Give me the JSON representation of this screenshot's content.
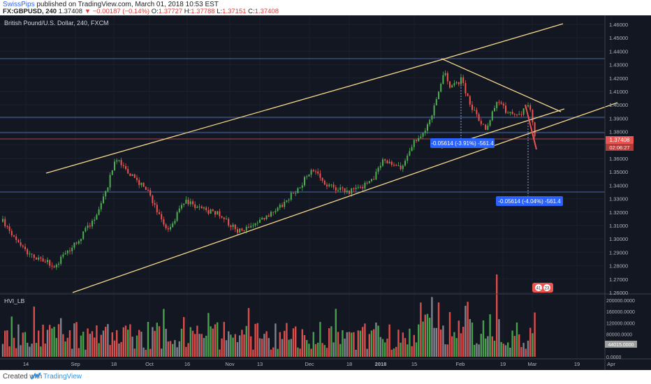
{
  "header": {
    "author": "SwissPips",
    "published": "published on TradingView.com, March 01, 2018 10:53 EST",
    "symbol": "FX:GBPUSD, 240",
    "last": "1.37408",
    "change": "−0.00187 (−0.14%)",
    "open_label": "O:",
    "open": "1.37727",
    "high_label": "H:",
    "high": "1.37788",
    "low_label": "L:",
    "low": "1.37151",
    "close_label": "C:",
    "close": "1.37408"
  },
  "chart": {
    "instrument_title": "British Pound/U.S. Dollar, 240, FXCM",
    "indicator_label": "HVI_LB",
    "price_badge": "1.37408",
    "countdown_badge": "02:06:27",
    "volume_badge": "44015.0000",
    "measure_1": "-0.05614 (-3.91%) -561.4",
    "measure_2": "-0.05614 (-4.04%) -561.4",
    "price_ticks": [
      "1.46000",
      "1.45000",
      "1.44000",
      "1.43000",
      "1.42000",
      "1.41000",
      "1.40000",
      "1.39000",
      "1.38000",
      "1.37000",
      "1.36000",
      "1.35000",
      "1.34000",
      "1.33000",
      "1.32000",
      "1.31000",
      "1.30000",
      "1.29000",
      "1.28000",
      "1.27000",
      "1.26000"
    ],
    "volume_ticks": [
      "200000.0000",
      "160000.0000",
      "120000.0000",
      "80000.0000",
      "0.0000"
    ],
    "time_ticks": [
      "14",
      "Sep",
      "18",
      "Oct",
      "16",
      "Nov",
      "13",
      "Dec",
      "18",
      "2018",
      "15",
      "Feb",
      "19",
      "Mar",
      "19",
      "Apr"
    ],
    "colors": {
      "background": "#131722",
      "up": "#4caf50",
      "down": "#ef5350",
      "trend": "#f5d98b",
      "level": "#4a6aa8",
      "badge": "#2962ff"
    }
  },
  "footer": {
    "created_with": "Created with",
    "brand": "TradingView"
  }
}
